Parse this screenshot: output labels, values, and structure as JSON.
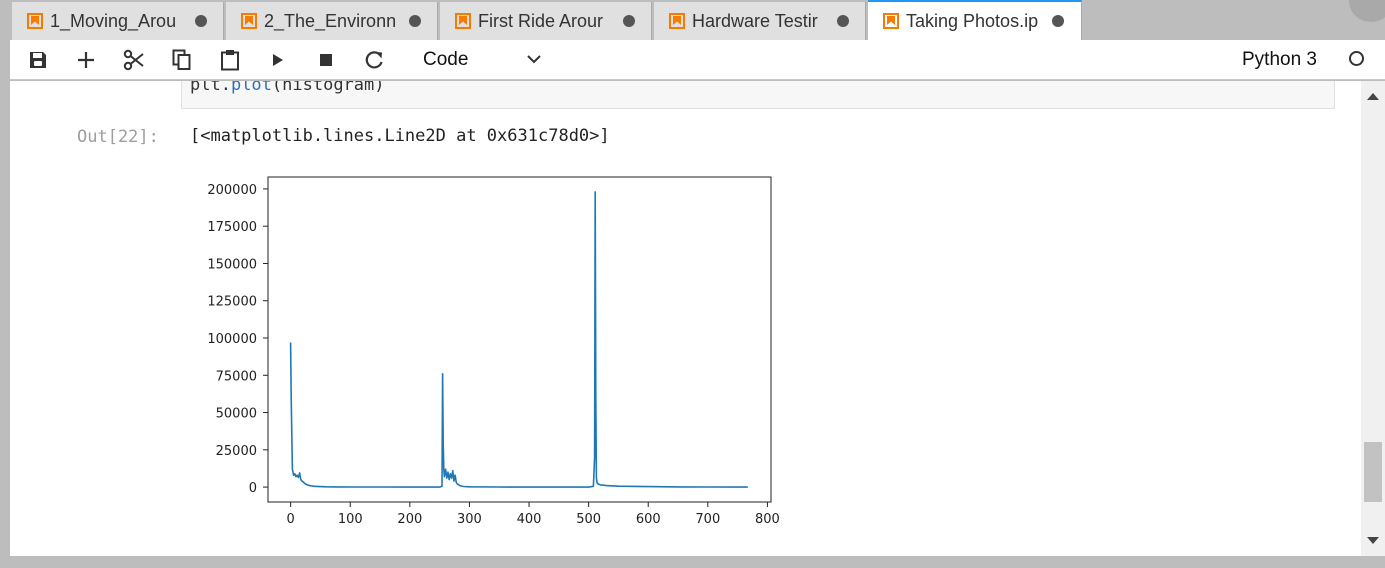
{
  "tabs": [
    {
      "label": "1_Moving_Arou",
      "dirty": true,
      "active": false
    },
    {
      "label": "2_The_Environn",
      "dirty": true,
      "active": false
    },
    {
      "label": "First Ride Arour",
      "dirty": true,
      "active": false
    },
    {
      "label": "Hardware Testir",
      "dirty": true,
      "active": false
    },
    {
      "label": "Taking Photos.ip",
      "dirty": true,
      "active": true
    }
  ],
  "toolbar": {
    "icons": [
      "save-icon",
      "add-cell-icon",
      "cut-icon",
      "copy-icon",
      "paste-icon",
      "run-icon",
      "stop-icon",
      "restart-icon"
    ],
    "cell_type": "Code",
    "kernel_name": "Python 3",
    "kernel_status": "idle"
  },
  "cell": {
    "code_prefix": "plt.",
    "code_function": "plot",
    "code_suffix": "(histogram)",
    "out_prompt": "Out[22]:",
    "out_text": "[<matplotlib.lines.Line2D at 0x631c78d0>]"
  },
  "colors": {
    "accent": "#2196f3",
    "line": "#1f77b4",
    "notebook_icon": "#f57c00"
  },
  "chart_data": {
    "type": "line",
    "title": "",
    "xlabel": "",
    "ylabel": "",
    "xlim": [
      -38,
      806
    ],
    "ylim": [
      -10000,
      208000
    ],
    "xticks": [
      0,
      100,
      200,
      300,
      400,
      500,
      600,
      700,
      800
    ],
    "yticks": [
      0,
      25000,
      50000,
      75000,
      100000,
      125000,
      150000,
      175000,
      200000
    ],
    "xtick_labels": [
      "0",
      "100",
      "200",
      "300",
      "400",
      "500",
      "600",
      "700",
      "800"
    ],
    "ytick_labels": [
      "0",
      "25000",
      "50000",
      "75000",
      "100000",
      "125000",
      "150000",
      "175000",
      "200000"
    ],
    "grid": false,
    "series": [
      {
        "x": [
          0,
          1,
          3,
          5,
          7,
          9,
          11,
          13,
          15,
          17,
          19,
          21,
          25,
          30,
          35,
          40,
          50,
          60,
          80,
          100,
          150,
          200,
          250,
          254,
          255,
          256,
          257,
          258,
          260,
          262,
          264,
          266,
          268,
          270,
          272,
          274,
          276,
          278,
          280,
          285,
          290,
          300,
          350,
          400,
          450,
          500,
          508,
          510,
          511,
          512,
          513,
          514,
          516,
          520,
          530,
          550,
          600,
          650,
          700,
          767
        ],
        "y": [
          97000,
          60000,
          12000,
          8000,
          9000,
          7000,
          8000,
          6500,
          9500,
          5000,
          4000,
          3500,
          2000,
          1200,
          800,
          500,
          300,
          200,
          100,
          50,
          30,
          20,
          10,
          500,
          76000,
          30000,
          12000,
          7000,
          12000,
          6000,
          10000,
          5000,
          9000,
          6000,
          11000,
          4000,
          8000,
          3000,
          2000,
          800,
          400,
          200,
          50,
          20,
          10,
          10,
          500,
          20000,
          198000,
          60000,
          6000,
          3000,
          2000,
          1500,
          1000,
          600,
          300,
          150,
          80,
          0
        ]
      }
    ]
  }
}
